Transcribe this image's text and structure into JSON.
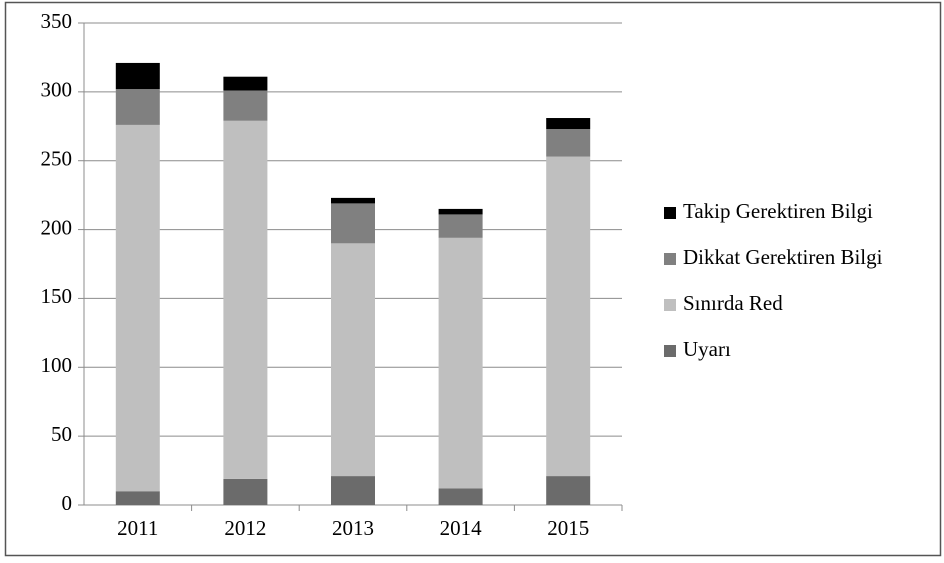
{
  "chart_data": {
    "type": "stacked_bar",
    "categories": [
      "2011",
      "2012",
      "2013",
      "2014",
      "2015"
    ],
    "series": [
      {
        "name": "Uyarı",
        "color": "#6b6b6b",
        "values": [
          10,
          19,
          21,
          12,
          21
        ]
      },
      {
        "name": "Sınırda Red",
        "color": "#bfbfbf",
        "values": [
          266,
          260,
          169,
          182,
          232
        ]
      },
      {
        "name": "Dikkat Gerektiren Bilgi",
        "color": "#808080",
        "values": [
          26,
          22,
          29,
          17,
          20
        ]
      },
      {
        "name": "Takip Gerektiren Bilgi",
        "color": "#000000",
        "values": [
          19,
          10,
          4,
          4,
          8
        ]
      }
    ],
    "ylim": [
      0,
      350
    ],
    "yticks": [
      0,
      50,
      100,
      150,
      200,
      250,
      300,
      350
    ],
    "grid": true,
    "legend": "right"
  }
}
